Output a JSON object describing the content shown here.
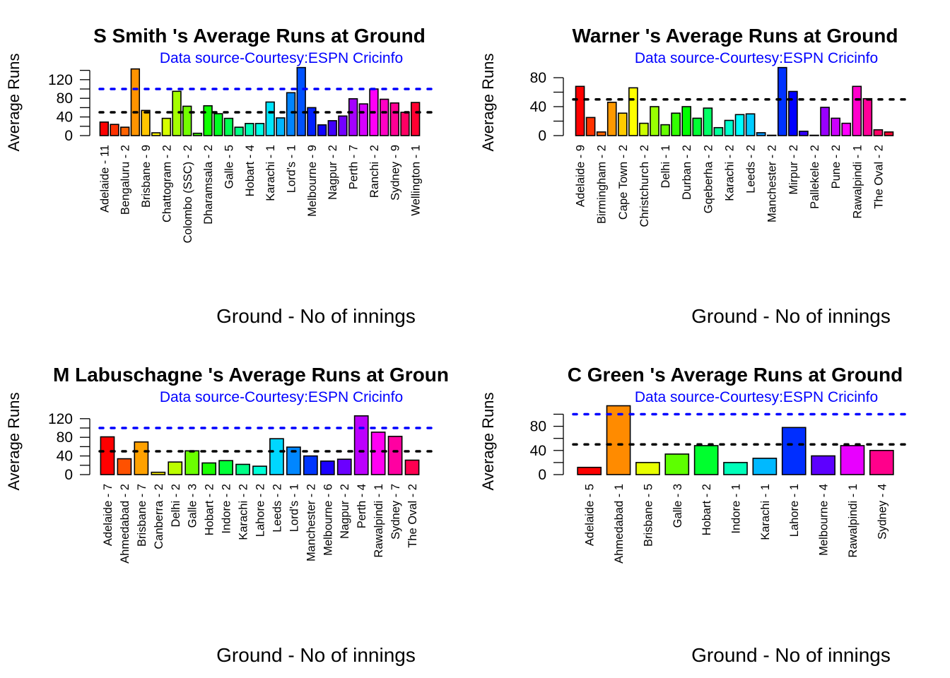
{
  "chart_data": [
    {
      "type": "bar",
      "title": "S Smith 's Average Runs at Ground",
      "subtitle": "Data source-Courtesy:ESPN Cricinfo",
      "xlabel": "Ground - No of innings",
      "ylabel": "Average Runs",
      "ylim": [
        0,
        140
      ],
      "yticks": [
        0,
        40,
        80,
        120
      ],
      "reference_lines": [
        {
          "value": 50,
          "color": "#000000"
        },
        {
          "value": 100,
          "color": "#0000ff"
        }
      ],
      "label_every": 2,
      "categories": [
        "Adelaide - 11",
        "",
        "Bengaluru - 2",
        "",
        "Brisbane - 9",
        "",
        "Chattogram - 2",
        "",
        "Colombo (SSC) - 2",
        "",
        "Dharamsala - 2",
        "",
        "Galle - 5",
        "",
        "Hobart - 4",
        "",
        "Karachi - 1",
        "",
        "Lord's - 1",
        "",
        "Melbourne - 9",
        "",
        "Nagpur - 2",
        "",
        "Perth - 7",
        "",
        "Ranchi - 2",
        "",
        "Sydney - 9",
        "",
        "Wellington - 1"
      ],
      "values": [
        29,
        24,
        18,
        143,
        54,
        6,
        37,
        95,
        63,
        5,
        64,
        47,
        37,
        18,
        26,
        26,
        72,
        38,
        92,
        146,
        60,
        23,
        32,
        42,
        79,
        68,
        100,
        78,
        70,
        50,
        71
      ]
    },
    {
      "type": "bar",
      "title": "Warner 's Average Runs at Ground",
      "subtitle": "Data source-Courtesy:ESPN Cricinfo",
      "xlabel": "Ground - No of innings",
      "ylabel": "Average Runs",
      "ylim": [
        0,
        90
      ],
      "yticks": [
        0,
        40,
        80
      ],
      "reference_lines": [
        {
          "value": 50,
          "color": "#000000"
        }
      ],
      "label_every": 2,
      "categories": [
        "Adelaide - 9",
        "",
        "Birmingham - 2",
        "",
        "Cape Town - 2",
        "",
        "Christchurch - 2",
        "",
        "Delhi - 1",
        "",
        "Durban - 2",
        "",
        "Gqeberha - 2",
        "",
        "Karachi - 2",
        "",
        "Leeds - 2",
        "",
        "Manchester - 2",
        "",
        "Mirpur - 2",
        "",
        "Pallekele - 2",
        "",
        "Pune - 2",
        "",
        "Rawalpindi - 1",
        "",
        "The Oval - 2"
      ],
      "values": [
        68,
        25,
        5,
        46,
        31,
        66,
        17,
        40,
        15,
        31,
        40,
        24,
        38,
        11,
        21,
        29,
        30,
        4,
        0,
        94,
        61,
        6,
        0,
        39,
        24,
        17,
        68,
        51,
        8,
        5
      ]
    },
    {
      "type": "bar",
      "title": "M Labuschagne 's Average Runs at Groun",
      "subtitle": "Data source-Courtesy:ESPN Cricinfo",
      "xlabel": "Ground - No of innings",
      "ylabel": "Average Runs",
      "ylim": [
        0,
        130
      ],
      "yticks": [
        0,
        40,
        80,
        120
      ],
      "reference_lines": [
        {
          "value": 50,
          "color": "#000000"
        },
        {
          "value": 100,
          "color": "#0000ff"
        }
      ],
      "label_every": 1,
      "categories": [
        "Adelaide - 7",
        "Ahmedabad - 2",
        "Brisbane - 7",
        "Canberra - 2",
        "Delhi - 2",
        "Galle - 3",
        "Hobart - 2",
        "Indore - 2",
        "Karachi - 2",
        "Lahore - 2",
        "Leeds - 2",
        "Lord's - 1",
        "Manchester - 2",
        "Melbourne - 6",
        "Nagpur - 2",
        "Perth - 4",
        "Rawalpindi - 1",
        "Sydney - 7",
        "The Oval - 2"
      ],
      "values": [
        81,
        34,
        70,
        5,
        27,
        51,
        25,
        30,
        22,
        18,
        77,
        59,
        40,
        29,
        33,
        126,
        91,
        82,
        31
      ]
    },
    {
      "type": "bar",
      "title": "C Green 's Average Runs at Ground",
      "subtitle": "Data source-Courtesy:ESPN Cricinfo",
      "xlabel": "Ground - No of innings",
      "ylabel": "Average Runs",
      "ylim": [
        0,
        115
      ],
      "yticks": [
        0,
        40,
        80
      ],
      "reference_lines": [
        {
          "value": 50,
          "color": "#000000"
        },
        {
          "value": 100,
          "color": "#0000ff"
        }
      ],
      "label_every": 1,
      "categories": [
        "Adelaide - 5",
        "Ahmedabad - 1",
        "Brisbane - 5",
        "Galle - 3",
        "Hobart - 2",
        "Indore - 1",
        "Karachi - 1",
        "Lahore - 1",
        "Melbourne - 4",
        "Rawalpindi - 1",
        "Sydney - 4"
      ],
      "values": [
        12,
        114,
        20,
        34,
        48,
        20,
        27,
        78,
        31,
        48,
        40
      ]
    }
  ]
}
